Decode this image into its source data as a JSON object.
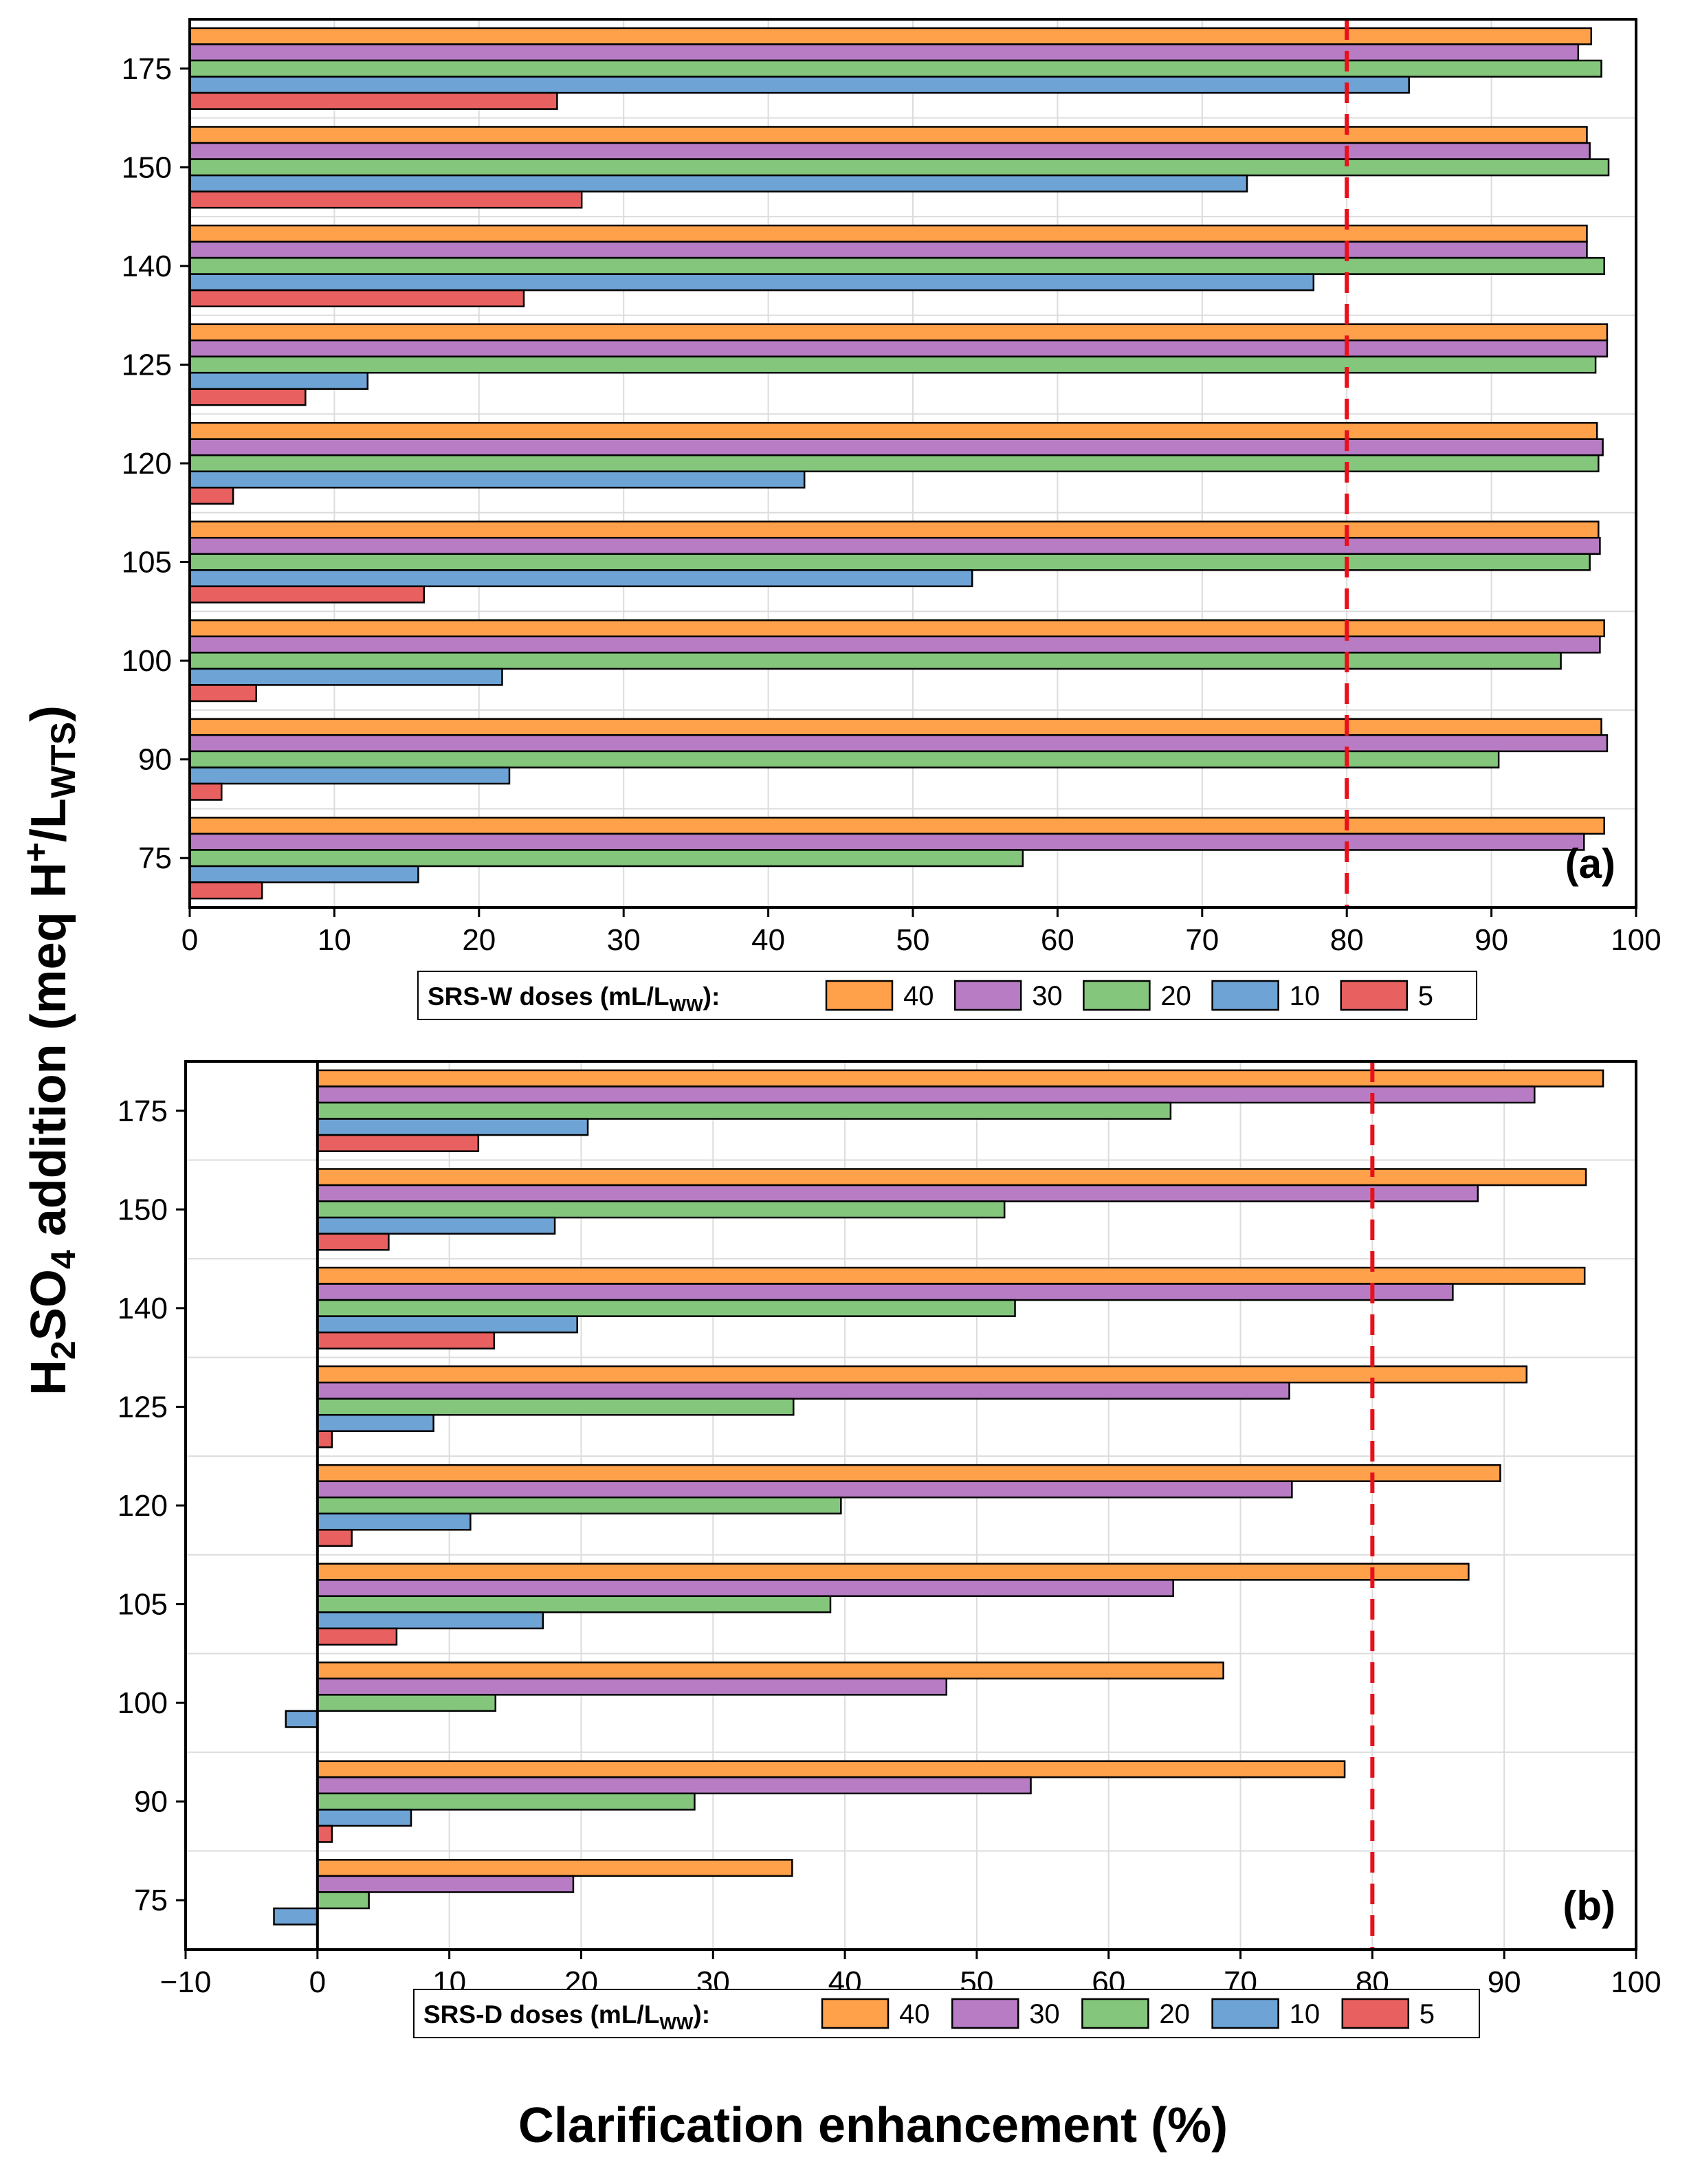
{
  "figure": {
    "y_axis_title": {
      "main": "H",
      "sub1": "2",
      "mid": "SO",
      "sub2": "4",
      "rest": " addition (meq H",
      "sup": "+",
      "slash": "/L",
      "sub3": "WTS",
      "close": ")"
    },
    "x_axis_title": "Clarification enhancement (%)"
  },
  "chart_data": [
    {
      "type": "bar",
      "orientation": "horizontal",
      "panel_label": "(a)",
      "categories": [
        "75",
        "90",
        "100",
        "105",
        "120",
        "125",
        "140",
        "150",
        "175"
      ],
      "xlim": [
        0,
        100
      ],
      "xticks": [
        0,
        10,
        20,
        30,
        40,
        50,
        60,
        70,
        80,
        90,
        100
      ],
      "xtick_labels": [
        "0",
        "10",
        "20",
        "30",
        "40",
        "50",
        "60",
        "70",
        "80",
        "90",
        "100"
      ],
      "reference_line": 80,
      "legend": {
        "title": "SRS-W doses (mL/L",
        "title_sub": "WW",
        "title_end": "):"
      },
      "series": [
        {
          "name": "40",
          "color": "#FFA04A",
          "values": [
            97.8,
            97.6,
            97.8,
            97.4,
            97.3,
            98.0,
            96.6,
            96.6,
            96.9
          ]
        },
        {
          "name": "30",
          "color": "#B77CC4",
          "values": [
            96.4,
            98.0,
            97.5,
            97.5,
            97.7,
            98.0,
            96.6,
            96.8,
            96.0
          ]
        },
        {
          "name": "20",
          "color": "#84C77C",
          "values": [
            57.6,
            90.5,
            94.8,
            96.8,
            97.4,
            97.2,
            97.8,
            98.1,
            97.6
          ]
        },
        {
          "name": "10",
          "color": "#6EA3D6",
          "values": [
            15.8,
            22.1,
            21.6,
            54.1,
            42.5,
            12.3,
            77.7,
            73.1,
            84.3
          ]
        },
        {
          "name": "5",
          "color": "#E8605F",
          "values": [
            5.0,
            2.2,
            4.6,
            16.2,
            3.0,
            8.0,
            23.1,
            27.1,
            25.4
          ]
        }
      ]
    },
    {
      "type": "bar",
      "orientation": "horizontal",
      "panel_label": "(b)",
      "categories": [
        "75",
        "90",
        "100",
        "105",
        "120",
        "125",
        "140",
        "150",
        "175"
      ],
      "xlim": [
        -10,
        100
      ],
      "xticks": [
        -10,
        0,
        10,
        20,
        30,
        40,
        50,
        60,
        70,
        80,
        90,
        100
      ],
      "xtick_labels": [
        "−10",
        "0",
        "10",
        "20",
        "30",
        "40",
        "50",
        "60",
        "70",
        "80",
        "90",
        "100"
      ],
      "reference_line": 80,
      "legend": {
        "title": "SRS-D doses (mL/L",
        "title_sub": "WW",
        "title_end": "):"
      },
      "series": [
        {
          "name": "40",
          "color": "#FFA04A",
          "values": [
            36.0,
            77.9,
            68.7,
            87.3,
            89.7,
            91.7,
            96.1,
            96.2,
            97.5
          ]
        },
        {
          "name": "30",
          "color": "#B77CC4",
          "values": [
            19.4,
            54.1,
            47.7,
            64.9,
            73.9,
            73.7,
            86.1,
            88.0,
            92.3
          ]
        },
        {
          "name": "20",
          "color": "#84C77C",
          "values": [
            3.9,
            28.6,
            13.5,
            38.9,
            39.7,
            36.1,
            52.9,
            52.1,
            64.7
          ]
        },
        {
          "name": "10",
          "color": "#6EA3D6",
          "values": [
            -3.3,
            7.1,
            -2.4,
            17.1,
            11.6,
            8.8,
            19.7,
            18.0,
            20.5
          ]
        },
        {
          "name": "5",
          "color": "#E8605F",
          "values": [
            0.0,
            1.1,
            0.0,
            6.0,
            2.6,
            1.1,
            13.4,
            5.4,
            12.2
          ]
        }
      ]
    }
  ]
}
